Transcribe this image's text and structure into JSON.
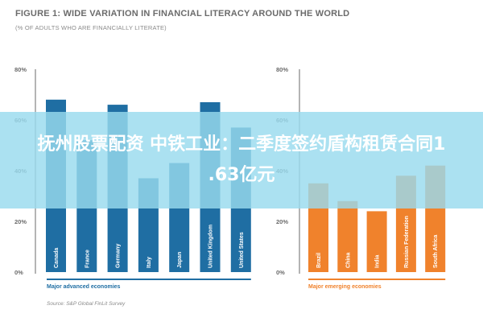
{
  "header": {
    "title": "FIGURE 1: WIDE VARIATION IN FINANCIAL LITERACY AROUND THE WORLD",
    "subtitle": "(% OF ADULTS WHO ARE FINANCIALLY LITERATE)"
  },
  "overlay": {
    "line1": "抚州股票配资 中铁工业：二季度签约盾构租赁合同1",
    "line2": ".63亿元"
  },
  "source": "Source: S&P Global FinLit Survey",
  "colors": {
    "advanced": "#1f6ea3",
    "emerging": "#f0822c",
    "title": "#6b6b6b",
    "overlay": "#98daee"
  },
  "chart_data": [
    {
      "type": "bar",
      "group_label": "Major advanced economies",
      "categories": [
        "Canada",
        "France",
        "Germany",
        "Italy",
        "Japan",
        "United Kingdom",
        "United States"
      ],
      "values": [
        68,
        52,
        66,
        37,
        43,
        67,
        57
      ],
      "ylim": [
        0,
        80
      ],
      "yticks": [
        "0%",
        "20%",
        "40%",
        "60%",
        "80%"
      ]
    },
    {
      "type": "bar",
      "group_label": "Major emerging economies",
      "categories": [
        "Brazil",
        "China",
        "India",
        "Russian Federation",
        "South Africa"
      ],
      "values": [
        35,
        28,
        24,
        38,
        42
      ],
      "ylim": [
        0,
        80
      ],
      "yticks": [
        "0%",
        "20%",
        "40%",
        "60%",
        "80%"
      ]
    }
  ]
}
